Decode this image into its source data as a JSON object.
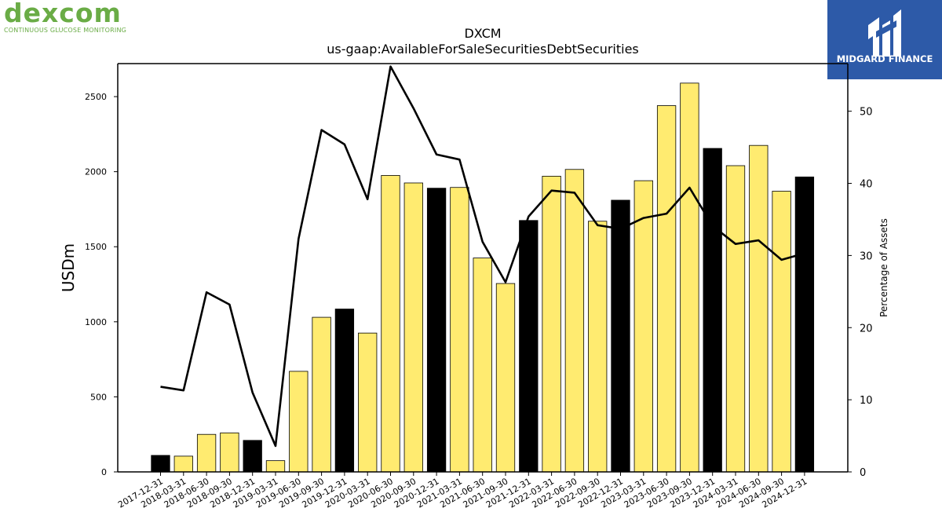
{
  "branding": {
    "company_logo_text": "dexcom",
    "company_logo_subtitle": "CONTINUOUS GLUCOSE MONITORING",
    "publisher_name": "MIDGARD FINANCE"
  },
  "chart_data": {
    "type": "bar",
    "title": "DXCM",
    "subtitle": "us-gaap:AvailableForSaleSecuritiesDebtSecurities",
    "ylabel": "USDm",
    "y2label": "Percentage of Assets",
    "ylim": [
      0,
      2720
    ],
    "y_ticks": [
      0,
      500,
      1000,
      1500,
      2000,
      2500
    ],
    "y2lim": [
      0,
      56.6
    ],
    "y2_ticks": [
      0,
      10,
      20,
      30,
      40,
      50
    ],
    "categories": [
      "2017-12-31",
      "2018-03-31",
      "2018-06-30",
      "2018-09-30",
      "2018-12-31",
      "2019-03-31",
      "2019-06-30",
      "2019-09-30",
      "2019-12-31",
      "2020-03-31",
      "2020-06-30",
      "2020-09-30",
      "2020-12-31",
      "2021-03-31",
      "2021-06-30",
      "2021-09-30",
      "2021-12-31",
      "2022-03-31",
      "2022-06-30",
      "2022-09-30",
      "2022-12-31",
      "2023-03-31",
      "2023-06-30",
      "2023-09-30",
      "2023-12-31",
      "2024-03-31",
      "2024-06-30",
      "2024-09-30",
      "2024-12-31"
    ],
    "series": [
      {
        "kind": "bar",
        "values": [
          110,
          105,
          250,
          260,
          210,
          75,
          670,
          1030,
          1085,
          925,
          1975,
          1925,
          1890,
          1895,
          1425,
          1255,
          1675,
          1970,
          2015,
          1670,
          1810,
          1940,
          2440,
          2590,
          2155,
          2040,
          2175,
          1870,
          1965
        ],
        "colors": [
          "#000000",
          "#ffeb70",
          "#ffeb70",
          "#ffeb70",
          "#000000",
          "#ffeb70",
          "#ffeb70",
          "#ffeb70",
          "#000000",
          "#ffeb70",
          "#ffeb70",
          "#ffeb70",
          "#000000",
          "#ffeb70",
          "#ffeb70",
          "#ffeb70",
          "#000000",
          "#ffeb70",
          "#ffeb70",
          "#ffeb70",
          "#000000",
          "#ffeb70",
          "#ffeb70",
          "#ffeb70",
          "#000000",
          "#ffeb70",
          "#ffeb70",
          "#ffeb70",
          "#000000"
        ]
      },
      {
        "kind": "line",
        "axis": "right",
        "color": "#000000",
        "values": [
          11.8,
          11.3,
          24.9,
          23.2,
          11.0,
          3.6,
          32.3,
          47.4,
          45.4,
          37.8,
          56.2,
          50.4,
          44.0,
          43.3,
          31.9,
          26.3,
          35.4,
          39.0,
          38.7,
          34.2,
          33.7,
          35.2,
          35.8,
          39.4,
          34.1,
          31.6,
          32.1,
          29.4,
          30.3
        ]
      }
    ],
    "legend": "none",
    "grid": false
  }
}
